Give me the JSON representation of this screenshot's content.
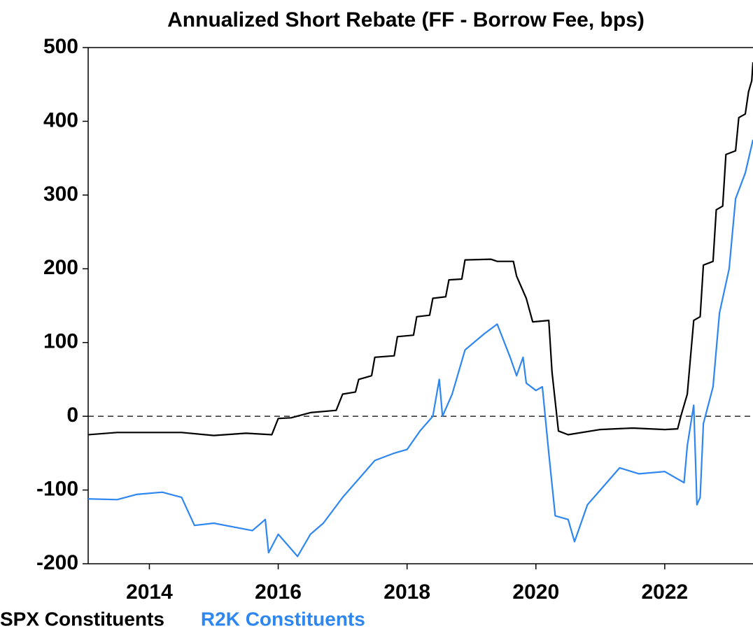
{
  "chart_data": {
    "type": "line",
    "title": "Annualized Short Rebate (FF - Borrow Fee, bps)",
    "xlim": [
      2013.05,
      2023.37
    ],
    "xticks": [
      2014,
      2016,
      2018,
      2020,
      2022
    ],
    "ylim": [
      -200,
      500
    ],
    "yticks": [
      -200,
      -100,
      0,
      100,
      200,
      300,
      400,
      500
    ],
    "reference_line": 0,
    "legend": "bottom-left",
    "series": [
      {
        "name": "SPX Constituents",
        "color": "#000000",
        "x": [
          2013.05,
          2013.5,
          2014,
          2014.5,
          2015,
          2015.5,
          2015.9,
          2016.0,
          2016.2,
          2016.5,
          2016.9,
          2017.0,
          2017.2,
          2017.25,
          2017.45,
          2017.5,
          2017.8,
          2017.85,
          2018.1,
          2018.15,
          2018.35,
          2018.4,
          2018.6,
          2018.65,
          2018.85,
          2018.9,
          2019.3,
          2019.4,
          2019.65,
          2019.7,
          2019.85,
          2019.95,
          2020.2,
          2020.25,
          2020.35,
          2020.5,
          2021,
          2021.5,
          2022.0,
          2022.2,
          2022.25,
          2022.35,
          2022.45,
          2022.55,
          2022.6,
          2022.75,
          2022.8,
          2022.9,
          2022.95,
          2023.1,
          2023.15,
          2023.25,
          2023.3,
          2023.35,
          2023.37
        ],
        "values": [
          -25,
          -22,
          -22,
          -22,
          -26,
          -23,
          -25,
          -3,
          -2,
          5,
          8,
          30,
          33,
          50,
          55,
          80,
          82,
          108,
          110,
          135,
          137,
          160,
          162,
          185,
          186,
          212,
          213,
          210,
          210,
          190,
          160,
          128,
          130,
          60,
          -20,
          -25,
          -18,
          -16,
          -18,
          -17,
          0,
          30,
          130,
          135,
          205,
          210,
          280,
          285,
          355,
          360,
          405,
          410,
          440,
          455,
          480
        ]
      },
      {
        "name": "R2K Constituents",
        "color": "#2e86f0",
        "x": [
          2013.05,
          2013.5,
          2013.8,
          2014.2,
          2014.5,
          2014.7,
          2015.0,
          2015.3,
          2015.6,
          2015.8,
          2015.85,
          2016.0,
          2016.2,
          2016.3,
          2016.5,
          2016.7,
          2017.0,
          2017.3,
          2017.5,
          2017.8,
          2018.0,
          2018.2,
          2018.4,
          2018.5,
          2018.55,
          2018.7,
          2018.9,
          2019.2,
          2019.4,
          2019.6,
          2019.7,
          2019.8,
          2019.85,
          2020.0,
          2020.1,
          2020.2,
          2020.3,
          2020.5,
          2020.6,
          2020.8,
          2021.0,
          2021.3,
          2021.6,
          2022.0,
          2022.2,
          2022.3,
          2022.35,
          2022.45,
          2022.5,
          2022.55,
          2022.6,
          2022.75,
          2022.85,
          2023.0,
          2023.1,
          2023.25,
          2023.37
        ],
        "values": [
          -112,
          -113,
          -106,
          -103,
          -110,
          -148,
          -145,
          -150,
          -155,
          -140,
          -185,
          -160,
          -180,
          -190,
          -160,
          -145,
          -110,
          -80,
          -60,
          -50,
          -45,
          -20,
          0,
          50,
          0,
          30,
          90,
          112,
          125,
          80,
          55,
          80,
          45,
          35,
          40,
          -50,
          -135,
          -140,
          -170,
          -120,
          -100,
          -70,
          -78,
          -75,
          -85,
          -90,
          -40,
          15,
          -120,
          -110,
          -10,
          40,
          140,
          200,
          295,
          330,
          375
        ]
      }
    ]
  }
}
